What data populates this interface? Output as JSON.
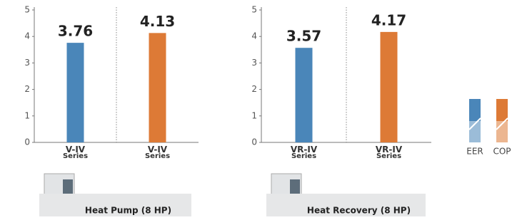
{
  "chart_data": [
    {
      "type": "bar",
      "categories": [
        "V-IV Series",
        "V-IV Series"
      ],
      "values": [
        3.76,
        4.13
      ],
      "colors": [
        "#4a86b9",
        "#dd7a36"
      ],
      "ylim": [
        0,
        5
      ],
      "yticks": [
        0,
        1,
        2,
        3,
        4,
        5
      ],
      "footer_label": "Heat Pump (8 HP)"
    },
    {
      "type": "bar",
      "categories": [
        "VR-IV Series",
        "VR-IV Series"
      ],
      "values": [
        3.57,
        4.17
      ],
      "colors": [
        "#4a86b9",
        "#dd7a36"
      ],
      "ylim": [
        0,
        5
      ],
      "yticks": [
        0,
        1,
        2,
        3,
        4,
        5
      ],
      "footer_label": "Heat Recovery (8 HP)"
    }
  ],
  "legend": [
    {
      "name": "EER",
      "color": "#4a86b9"
    },
    {
      "name": "COP",
      "color": "#dd7a36"
    }
  ]
}
